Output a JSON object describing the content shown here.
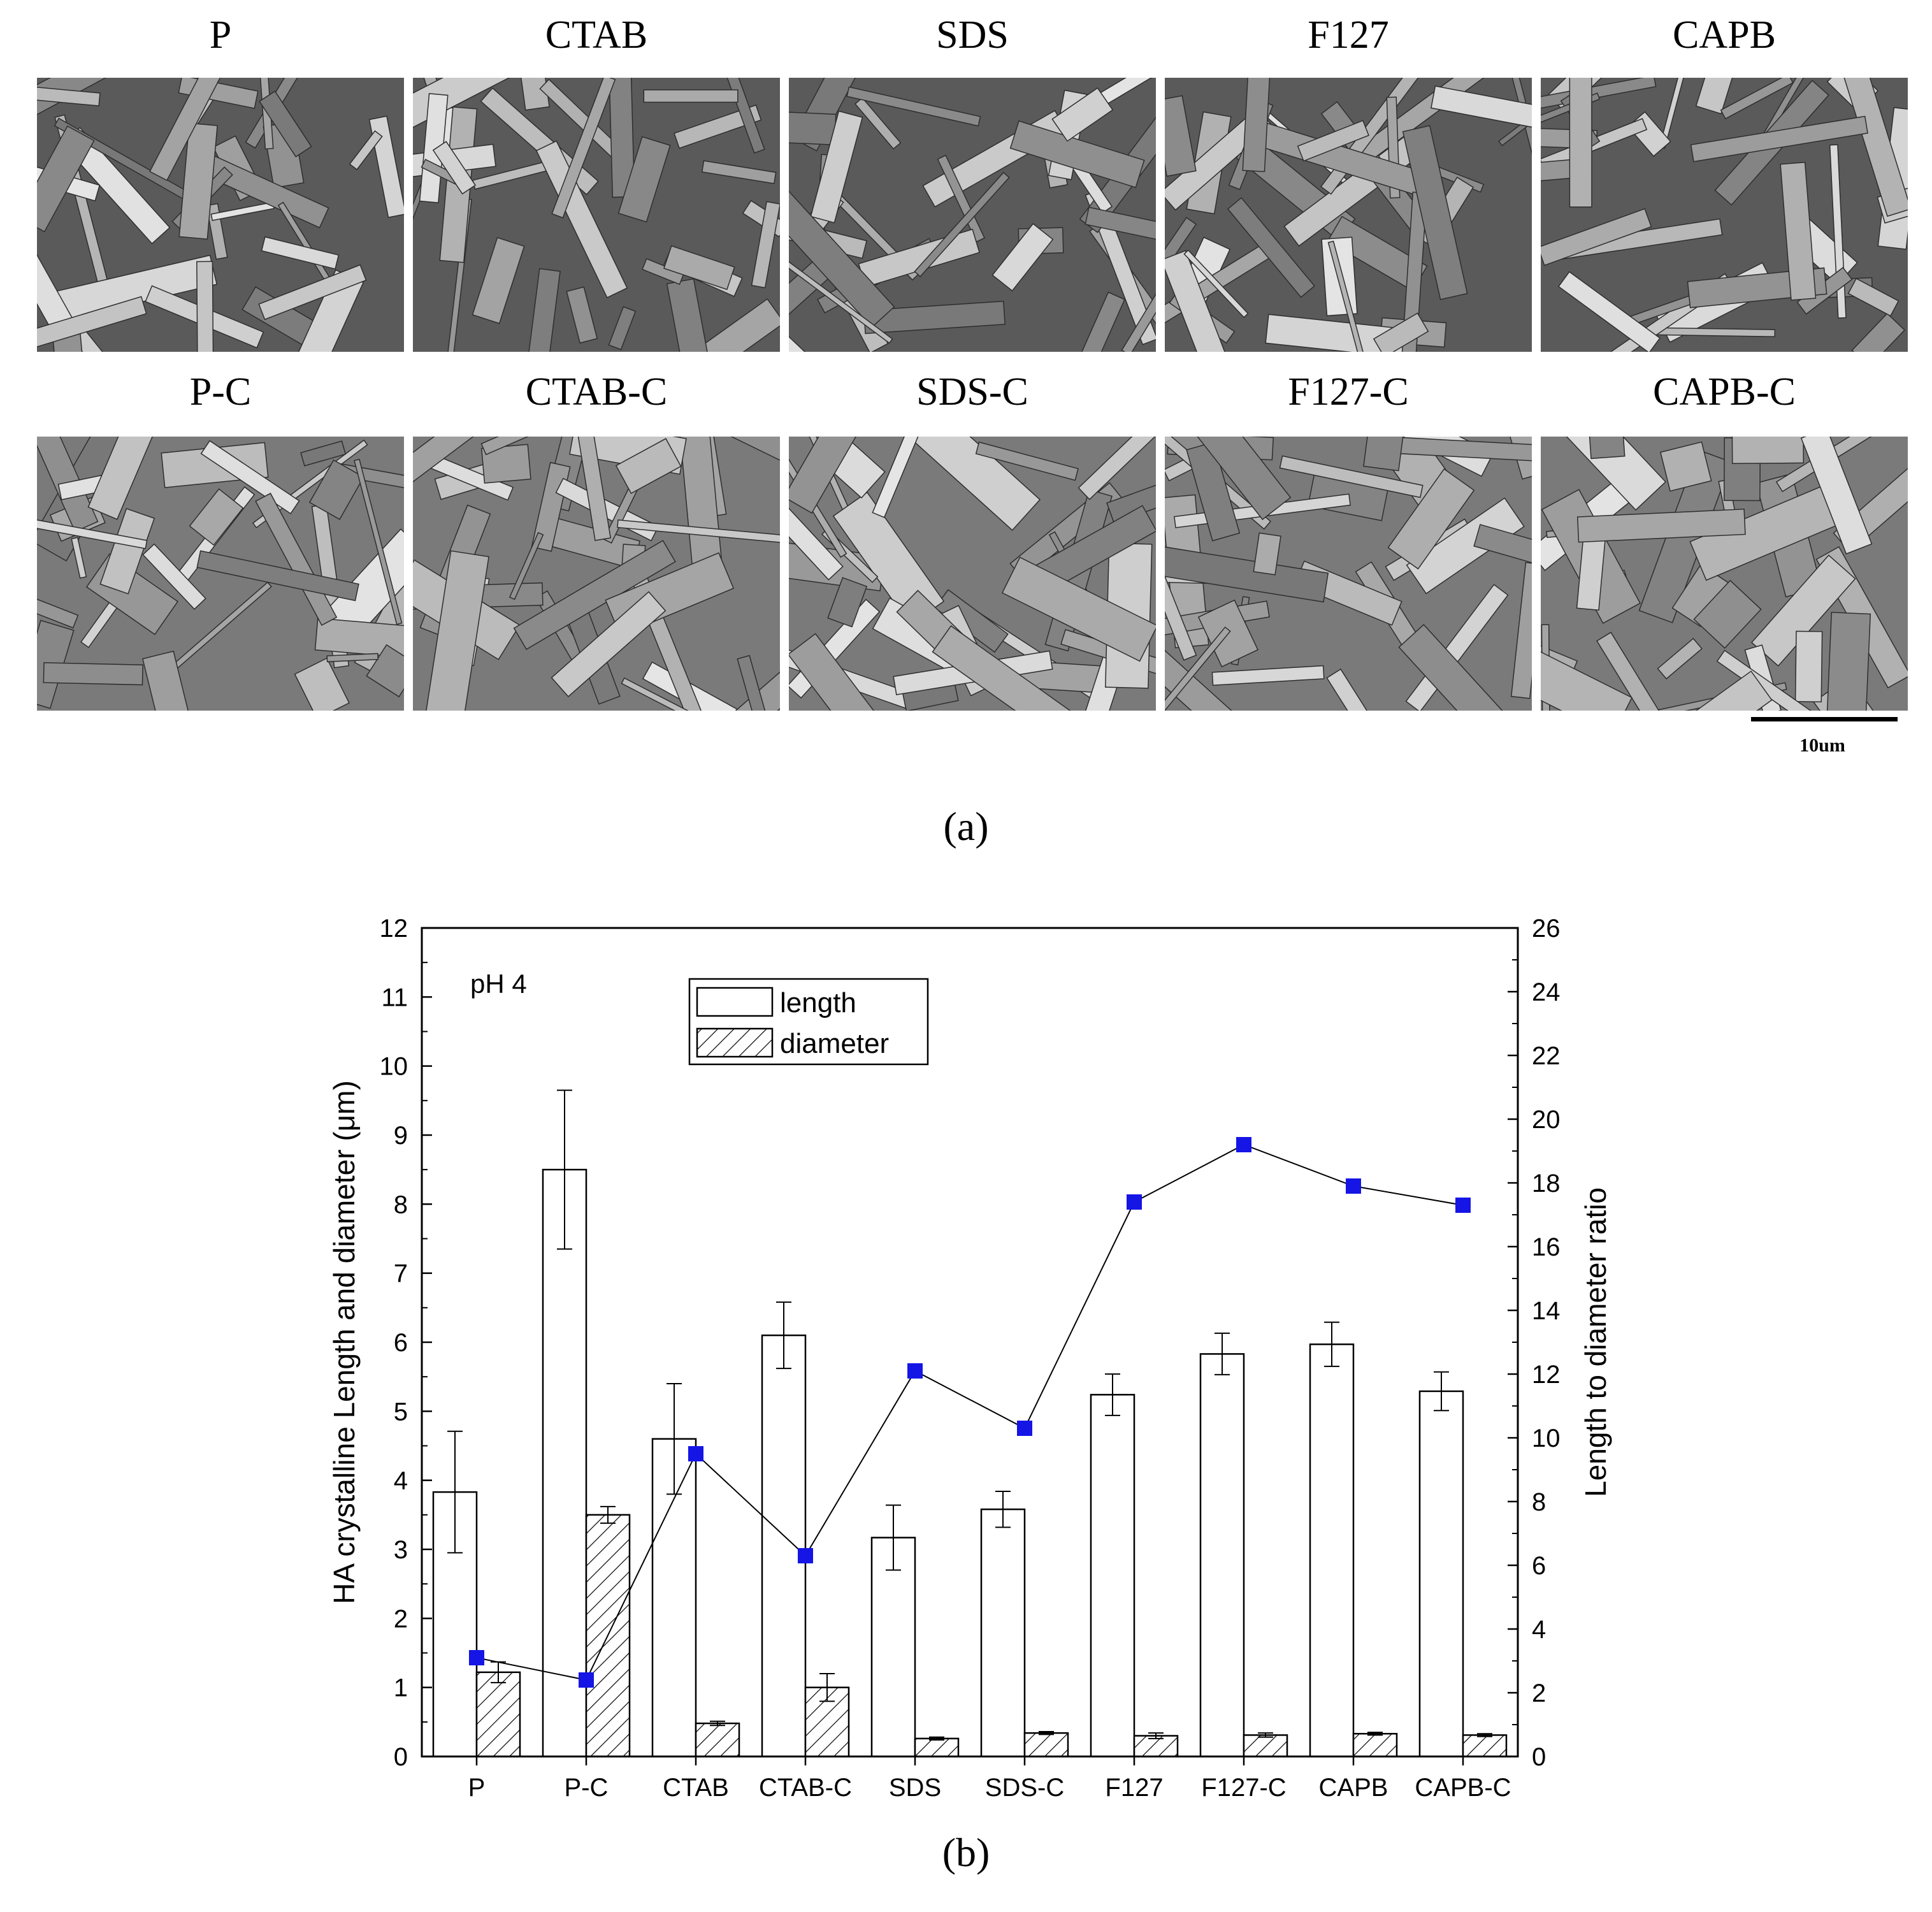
{
  "panel_a": {
    "caption": "(a)",
    "top_row": [
      {
        "label": "P"
      },
      {
        "label": "CTAB"
      },
      {
        "label": "SDS"
      },
      {
        "label": "F127"
      },
      {
        "label": "CAPB"
      }
    ],
    "bottom_row": [
      {
        "label": "P-C"
      },
      {
        "label": "CTAB-C"
      },
      {
        "label": "SDS-C"
      },
      {
        "label": "F127-C"
      },
      {
        "label": "CAPB-C"
      }
    ],
    "scale_bar_label": "10um"
  },
  "panel_b": {
    "caption": "(b)"
  },
  "chart_data": {
    "type": "bar",
    "categories": [
      "P",
      "P-C",
      "CTAB",
      "CTAB-C",
      "SDS",
      "SDS-C",
      "F127",
      "F127-C",
      "CAPB",
      "CAPB-C"
    ],
    "annotation": "pH 4",
    "ylabel": "HA crystalline Length and diameter (μm)",
    "y2label": "Length to diameter ratio",
    "ylim": [
      0,
      12
    ],
    "y_ticks": [
      "0",
      "1",
      "2",
      "3",
      "4",
      "5",
      "6",
      "7",
      "8",
      "9",
      "10",
      "11",
      "12"
    ],
    "y2lim": [
      0,
      26
    ],
    "y2_ticks": [
      "0",
      "2",
      "4",
      "6",
      "8",
      "10",
      "12",
      "14",
      "16",
      "18",
      "20",
      "22",
      "24",
      "26"
    ],
    "legend_position": "top-center",
    "series": [
      {
        "name": "length",
        "kind": "bar",
        "pattern": "open",
        "values": [
          3.83,
          8.5,
          4.6,
          6.1,
          3.17,
          3.58,
          5.24,
          5.83,
          5.97,
          5.29
        ],
        "errors": [
          0.88,
          1.15,
          0.8,
          0.48,
          0.47,
          0.26,
          0.3,
          0.3,
          0.32,
          0.28
        ]
      },
      {
        "name": "diameter",
        "kind": "bar",
        "pattern": "hatched",
        "values": [
          1.22,
          3.5,
          0.48,
          1.0,
          0.26,
          0.34,
          0.3,
          0.31,
          0.33,
          0.31
        ],
        "errors": [
          0.15,
          0.12,
          0.03,
          0.2,
          0.02,
          0.02,
          0.04,
          0.03,
          0.02,
          0.02
        ]
      },
      {
        "name": "ratio",
        "kind": "line",
        "axis": "right",
        "color": "#1515e6",
        "values": [
          3.1,
          2.4,
          9.5,
          6.3,
          12.1,
          10.3,
          17.4,
          19.2,
          17.9,
          17.3
        ]
      }
    ]
  }
}
